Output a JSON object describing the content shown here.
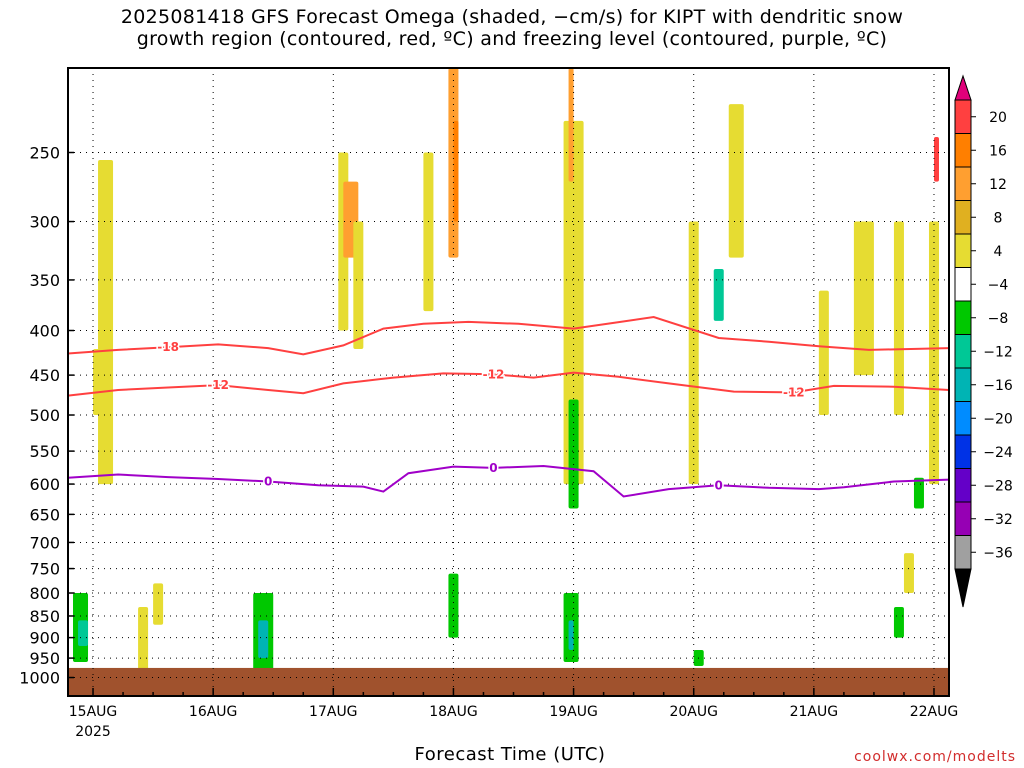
{
  "title": "2025081418 GFS Forecast Omega (shaded, −cm/s) for KIPT with dendritic snow\ngrowth region (contoured, red, ºC) and freezing level (contoured, purple, ºC)",
  "xlabel": "Forecast Time (UTC)",
  "credit": "coolwx.com/modelts",
  "chart_data": {
    "type": "heatmap",
    "title": "2025081418 GFS Forecast Omega (shaded, −cm/s) for KIPT with dendritic snow growth region (contoured, red, ºC) and freezing level (contoured, purple, ºC)",
    "xlabel": "Forecast Time (UTC)",
    "ylabel": "",
    "y_scale": "log (pressure, inverted)",
    "ylim_hPa": [
      1050,
      200
    ],
    "x_ticks": [
      "15AUG",
      "16AUG",
      "17AUG",
      "18AUG",
      "19AUG",
      "20AUG",
      "21AUG",
      "22AUG"
    ],
    "x_tick_subtitle": "2025",
    "xlim_hours": [
      -5,
      171
    ],
    "y_ticks": [
      250,
      300,
      350,
      400,
      450,
      500,
      550,
      600,
      650,
      700,
      750,
      800,
      850,
      900,
      950,
      1000
    ],
    "grid": true,
    "ground_color": "#a0522d",
    "colorbar": {
      "labels": [
        "20",
        "16",
        "12",
        "8",
        "4",
        "−4",
        "−8",
        "−12",
        "−16",
        "−20",
        "−24",
        "−28",
        "−32",
        "−36"
      ],
      "colors": [
        "#e0007a",
        "#ff4040",
        "#ff7f00",
        "#ff9f30",
        "#e0b020",
        "#e6dc32",
        "#ffffff",
        "#00c800",
        "#00c896",
        "#00b4b4",
        "#008cff",
        "#0032e6",
        "#6400c8",
        "#9600b4",
        "#a0a0a0",
        "#000000"
      ]
    },
    "contours": [
      {
        "label": "-18",
        "color": "#ff4040",
        "points": [
          [
            -5,
            425
          ],
          [
            5,
            421
          ],
          [
            15,
            418
          ],
          [
            25,
            415
          ],
          [
            35,
            419
          ],
          [
            42,
            426
          ],
          [
            50,
            416
          ],
          [
            58,
            398
          ],
          [
            66,
            393
          ],
          [
            75,
            391
          ],
          [
            85,
            393
          ],
          [
            96,
            398
          ],
          [
            104,
            392
          ],
          [
            112,
            386
          ],
          [
            125,
            408
          ],
          [
            135,
            412
          ],
          [
            145,
            417
          ],
          [
            155,
            421
          ],
          [
            171,
            419
          ]
        ]
      },
      {
        "label": "-12",
        "color": "#ff4040",
        "points": [
          [
            -5,
            475
          ],
          [
            5,
            468
          ],
          [
            15,
            465
          ],
          [
            25,
            462
          ],
          [
            35,
            468
          ],
          [
            42,
            472
          ],
          [
            50,
            460
          ],
          [
            60,
            453
          ],
          [
            70,
            448
          ],
          [
            80,
            449
          ],
          [
            88,
            453
          ],
          [
            96,
            447
          ],
          [
            105,
            452
          ],
          [
            115,
            460
          ],
          [
            128,
            470
          ],
          [
            140,
            471
          ],
          [
            148,
            463
          ],
          [
            160,
            464
          ],
          [
            171,
            468
          ]
        ]
      },
      {
        "label": "0",
        "color": "#a000c8",
        "points": [
          [
            -5,
            590
          ],
          [
            5,
            585
          ],
          [
            15,
            589
          ],
          [
            25,
            592
          ],
          [
            35,
            596
          ],
          [
            45,
            602
          ],
          [
            54,
            604
          ],
          [
            58,
            612
          ],
          [
            63,
            583
          ],
          [
            72,
            573
          ],
          [
            80,
            575
          ],
          [
            90,
            572
          ],
          [
            100,
            580
          ],
          [
            106,
            620
          ],
          [
            115,
            608
          ],
          [
            125,
            602
          ],
          [
            135,
            606
          ],
          [
            145,
            608
          ],
          [
            150,
            605
          ],
          [
            160,
            596
          ],
          [
            171,
            593
          ]
        ]
      }
    ],
    "shaded_regions": [
      {
        "x": [
          1,
          4
        ],
        "p": [
          600,
          255
        ],
        "value": 5
      },
      {
        "x": [
          0,
          3
        ],
        "p": [
          500,
          420
        ],
        "value": 5
      },
      {
        "x": [
          9,
          11
        ],
        "p": [
          980,
          830
        ],
        "value": 5
      },
      {
        "x": [
          12,
          14
        ],
        "p": [
          870,
          780
        ],
        "value": 5
      },
      {
        "x": [
          49,
          51
        ],
        "p": [
          400,
          250
        ],
        "value": 5
      },
      {
        "x": [
          50,
          53
        ],
        "p": [
          330,
          270
        ],
        "value": 9
      },
      {
        "x": [
          52,
          54
        ],
        "p": [
          420,
          300
        ],
        "value": 5
      },
      {
        "x": [
          66,
          68
        ],
        "p": [
          380,
          250
        ],
        "value": 5
      },
      {
        "x": [
          71,
          73
        ],
        "p": [
          330,
          200
        ],
        "value": 9
      },
      {
        "x": [
          72,
          73
        ],
        "p": [
          300,
          230
        ],
        "value": 14
      },
      {
        "x": [
          94,
          98
        ],
        "p": [
          600,
          230
        ],
        "value": 6
      },
      {
        "x": [
          95,
          96
        ],
        "p": [
          270,
          200
        ],
        "value": 9
      },
      {
        "x": [
          119,
          121
        ],
        "p": [
          600,
          300
        ],
        "value": 6
      },
      {
        "x": [
          127,
          130
        ],
        "p": [
          330,
          220
        ],
        "value": 5
      },
      {
        "x": [
          145,
          147
        ],
        "p": [
          500,
          360
        ],
        "value": 5
      },
      {
        "x": [
          152,
          156
        ],
        "p": [
          450,
          300
        ],
        "value": 5
      },
      {
        "x": [
          160,
          162
        ],
        "p": [
          500,
          300
        ],
        "value": 5
      },
      {
        "x": [
          167,
          169
        ],
        "p": [
          600,
          300
        ],
        "value": 5
      },
      {
        "x": [
          162,
          164
        ],
        "p": [
          800,
          720
        ],
        "value": 5
      },
      {
        "x": [
          168,
          169
        ],
        "p": [
          270,
          240
        ],
        "value": 18
      },
      {
        "x": [
          -4,
          -1
        ],
        "p": [
          960,
          800
        ],
        "value": -7
      },
      {
        "x": [
          -3,
          -1
        ],
        "p": [
          920,
          860
        ],
        "value": -11
      },
      {
        "x": [
          32,
          36
        ],
        "p": [
          980,
          800
        ],
        "value": -7
      },
      {
        "x": [
          33,
          35
        ],
        "p": [
          950,
          860
        ],
        "value": -15
      },
      {
        "x": [
          94,
          97
        ],
        "p": [
          960,
          800
        ],
        "value": -7
      },
      {
        "x": [
          95,
          96
        ],
        "p": [
          930,
          860
        ],
        "value": -15
      },
      {
        "x": [
          95,
          97
        ],
        "p": [
          640,
          480
        ],
        "value": -6
      },
      {
        "x": [
          71,
          73
        ],
        "p": [
          900,
          760
        ],
        "value": -7
      },
      {
        "x": [
          124,
          126
        ],
        "p": [
          390,
          340
        ],
        "value": -11
      },
      {
        "x": [
          120,
          122
        ],
        "p": [
          970,
          930
        ],
        "value": -6
      },
      {
        "x": [
          160,
          162
        ],
        "p": [
          900,
          830
        ],
        "value": -6
      },
      {
        "x": [
          164,
          166
        ],
        "p": [
          640,
          590
        ],
        "value": -6
      }
    ]
  }
}
